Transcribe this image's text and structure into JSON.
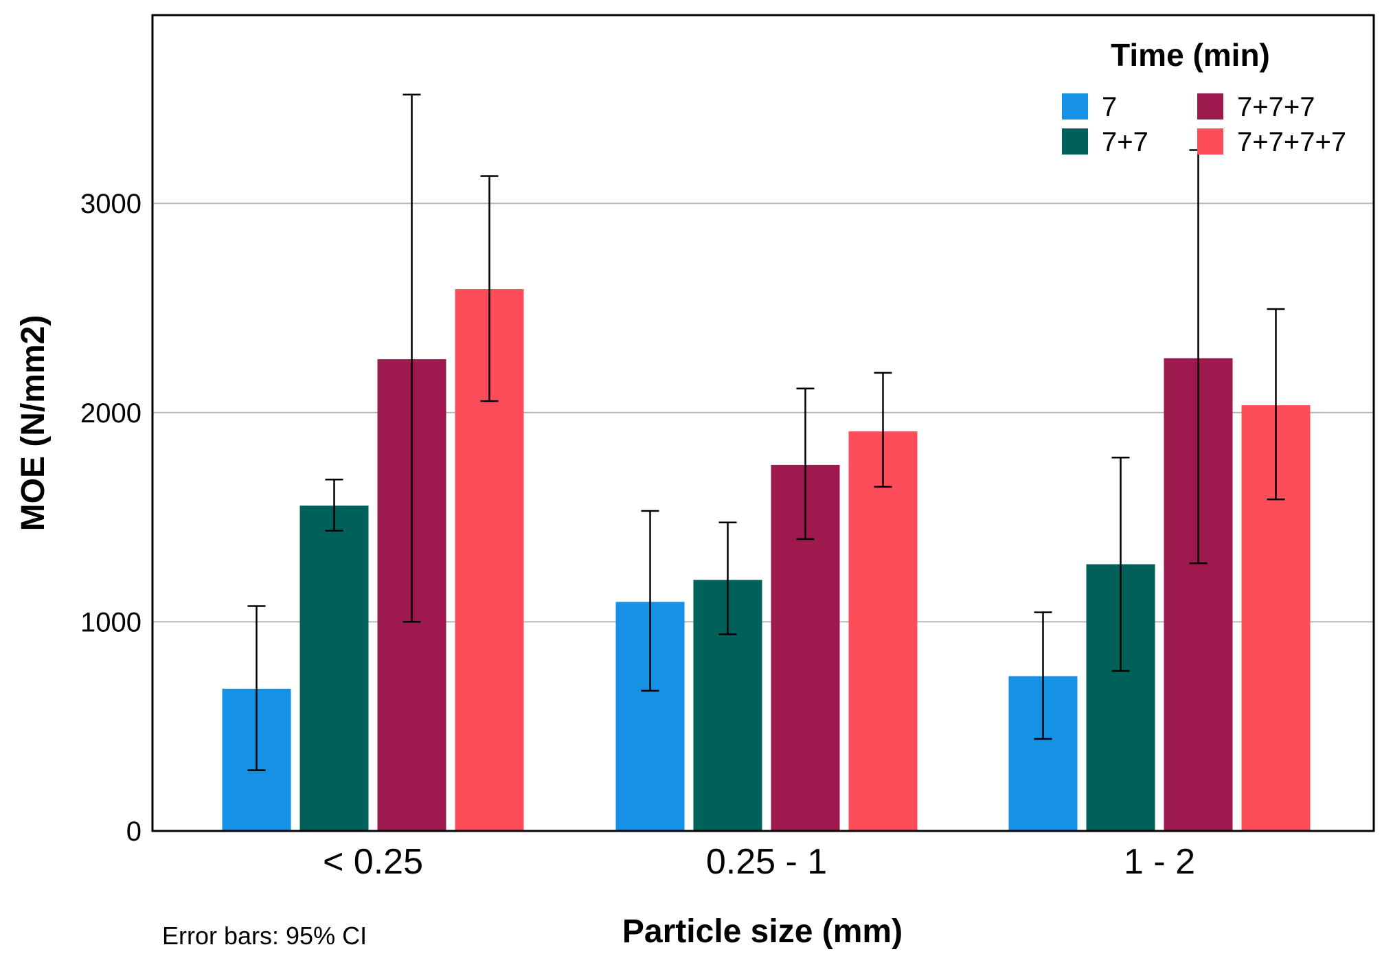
{
  "chart_data": {
    "type": "bar",
    "title": "",
    "xlabel": "Particle size (mm)",
    "ylabel": "MOE (N/mm2)",
    "ylim": [
      0,
      3900
    ],
    "yticks": [
      0,
      1000,
      2000,
      3000
    ],
    "grid": true,
    "categories": [
      "< 0.25",
      "0.25 - 1",
      "1 - 2"
    ],
    "legend_title": "Time (min)",
    "legend_position": "top-right",
    "note": "Error bars: 95% CI",
    "series": [
      {
        "name": "7",
        "color": "#1591e6",
        "values": [
          680,
          1095,
          740
        ],
        "ci_low": [
          290,
          670,
          440
        ],
        "ci_high": [
          1075,
          1530,
          1045
        ]
      },
      {
        "name": "7+7",
        "color": "#00605a",
        "values": [
          1555,
          1200,
          1275
        ],
        "ci_low": [
          1435,
          940,
          765
        ],
        "ci_high": [
          1680,
          1475,
          1785
        ]
      },
      {
        "name": "7+7+7",
        "color": "#9e1a4e",
        "values": [
          2255,
          1750,
          2260
        ],
        "ci_low": [
          1000,
          1395,
          1280
        ],
        "ci_high": [
          3520,
          2115,
          3255
        ]
      },
      {
        "name": "7+7+7+7",
        "color": "#fd4c5a",
        "values": [
          2590,
          1910,
          2035
        ],
        "ci_low": [
          2055,
          1645,
          1585
        ],
        "ci_high": [
          3130,
          2190,
          2495
        ]
      }
    ]
  }
}
